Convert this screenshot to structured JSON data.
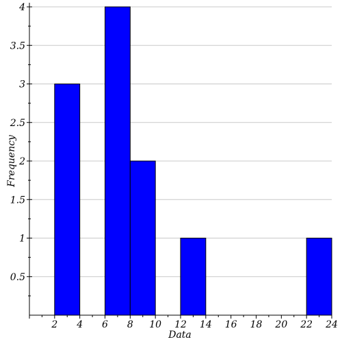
{
  "chart_data": {
    "type": "bar",
    "subtype": "histogram",
    "xlabel": "Data",
    "ylabel": "Frequency",
    "xlim": [
      0,
      24
    ],
    "ylim": [
      0,
      4
    ],
    "x_ticks": [
      2,
      4,
      6,
      8,
      10,
      12,
      14,
      16,
      18,
      20,
      22,
      24
    ],
    "y_ticks": [
      0.5,
      1,
      1.5,
      2,
      2.5,
      3,
      3.5,
      4
    ],
    "grid": "horizontal",
    "bins": [
      {
        "start": 2,
        "end": 4,
        "value": 3
      },
      {
        "start": 6,
        "end": 8,
        "value": 4
      },
      {
        "start": 8,
        "end": 10,
        "value": 2
      },
      {
        "start": 12,
        "end": 14,
        "value": 1
      },
      {
        "start": 22,
        "end": 24,
        "value": 1
      }
    ],
    "bar_color": "#0000ff",
    "bar_edge_color": "#000000"
  }
}
